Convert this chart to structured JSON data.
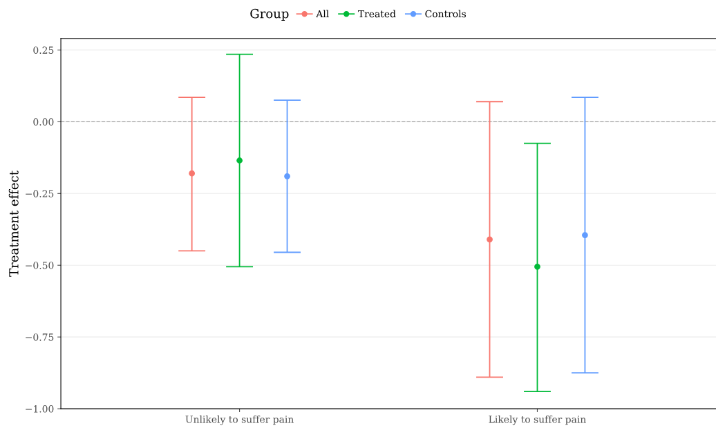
{
  "chart_data": {
    "type": "scatter",
    "ylabel": "Treatment effect",
    "legend_title": "Group",
    "categories": [
      "Unlikely to suffer pain",
      "Likely to suffer pain"
    ],
    "series": [
      {
        "name": "All",
        "color": "#f8766d",
        "values": [
          -0.18,
          -0.41
        ],
        "errors": [
          [
            -0.45,
            0.085
          ],
          [
            -0.89,
            0.07
          ]
        ]
      },
      {
        "name": "Treated",
        "color": "#00ba38",
        "values": [
          -0.135,
          -0.505
        ],
        "errors": [
          [
            -0.505,
            0.235
          ],
          [
            -0.94,
            -0.075
          ]
        ]
      },
      {
        "name": "Controls",
        "color": "#619cff",
        "values": [
          -0.19,
          -0.395
        ],
        "errors": [
          [
            -0.455,
            0.075
          ],
          [
            -0.875,
            0.085
          ]
        ]
      }
    ],
    "ylim": [
      -1.0,
      0.29
    ],
    "yticks": [
      {
        "value": 0.25,
        "label": "0.25"
      },
      {
        "value": 0,
        "label": "0.00"
      },
      {
        "value": -0.25,
        "label": "−0.25"
      },
      {
        "value": -0.5,
        "label": "−0.50"
      },
      {
        "value": -0.75,
        "label": "−0.75"
      },
      {
        "value": -1.0,
        "label": "−1.00"
      }
    ],
    "ref_lines": [
      {
        "axis": "y",
        "value": 0,
        "color": "#a0a0a0",
        "line_style": "dashed"
      }
    ],
    "grid": "y",
    "legend": "top",
    "marker": "circle"
  }
}
